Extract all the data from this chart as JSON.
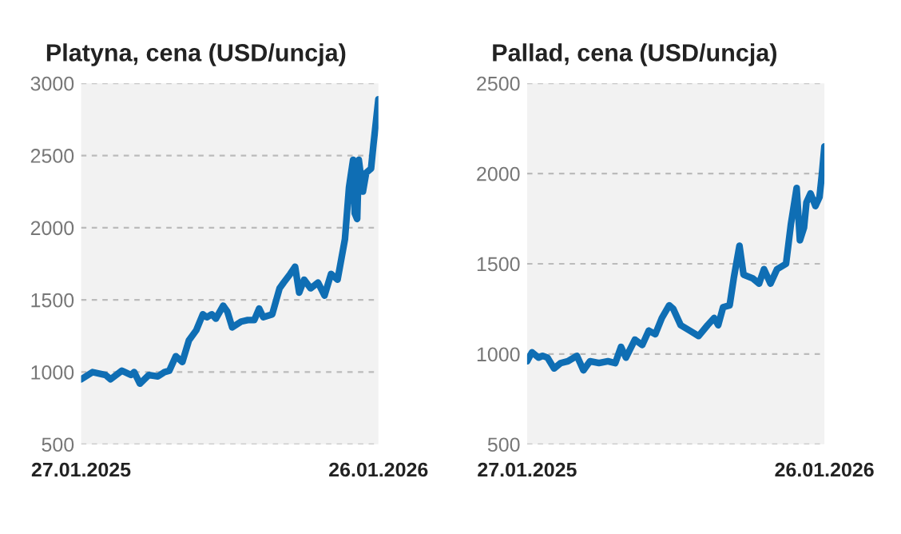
{
  "chart_data": [
    {
      "type": "line",
      "title": "Platyna, cena (USD/uncja)",
      "x": [
        "2025-01-27",
        "2025-02-10",
        "2025-02-26",
        "2025-03-04",
        "2025-03-18",
        "2025-03-29",
        "2025-04-02",
        "2025-04-09",
        "2025-04-20",
        "2025-05-01",
        "2025-05-09",
        "2025-05-15",
        "2025-05-23",
        "2025-05-31",
        "2025-06-08",
        "2025-06-17",
        "2025-06-25",
        "2025-06-30",
        "2025-07-06",
        "2025-07-11",
        "2025-07-20",
        "2025-07-25",
        "2025-07-31",
        "2025-08-11",
        "2025-08-19",
        "2025-08-27",
        "2025-09-02",
        "2025-09-07",
        "2025-09-18",
        "2025-09-27",
        "2025-10-02",
        "2025-10-10",
        "2025-10-16",
        "2025-10-21",
        "2025-10-27",
        "2025-11-04",
        "2025-11-13",
        "2025-11-21",
        "2025-11-29",
        "2025-12-07",
        "2025-12-16",
        "2025-12-21",
        "2025-12-26",
        "2025-12-28",
        "2025-12-31",
        "2026-01-02",
        "2026-01-07",
        "2026-01-11",
        "2026-01-17",
        "2026-01-20",
        "2026-01-26"
      ],
      "series": [
        {
          "color": "#0f6eb4",
          "values": [
            950,
            1000,
            980,
            950,
            1010,
            980,
            1000,
            920,
            980,
            970,
            1000,
            1010,
            1110,
            1070,
            1220,
            1290,
            1400,
            1380,
            1400,
            1370,
            1460,
            1420,
            1310,
            1350,
            1360,
            1360,
            1440,
            1380,
            1400,
            1580,
            1620,
            1680,
            1730,
            1550,
            1640,
            1580,
            1620,
            1530,
            1680,
            1640,
            1920,
            2280,
            2470,
            2100,
            2060,
            2470,
            2250,
            2380,
            2410,
            2580,
            2890
          ]
        }
      ],
      "xlim": [
        "2025-01-27",
        "2026-01-26"
      ],
      "xticks": [
        {
          "value": "2025-01-27",
          "label": "27.01.2025"
        },
        {
          "value": "2026-01-26",
          "label": "26.01.2026"
        }
      ],
      "ylim": [
        500,
        3000
      ],
      "yticks": [
        500,
        1000,
        1500,
        2000,
        2500,
        3000
      ],
      "grid": "y",
      "marker": "none",
      "line_style": "solid"
    },
    {
      "type": "line",
      "title": "Pallad, cena (USD/uncja)",
      "x": [
        "2025-01-27",
        "2025-02-02",
        "2025-02-10",
        "2025-02-15",
        "2025-02-21",
        "2025-03-01",
        "2025-03-09",
        "2025-03-18",
        "2025-03-29",
        "2025-04-06",
        "2025-04-14",
        "2025-04-25",
        "2025-05-06",
        "2025-05-15",
        "2025-05-22",
        "2025-05-28",
        "2025-06-08",
        "2025-06-17",
        "2025-06-25",
        "2025-07-03",
        "2025-07-11",
        "2025-07-20",
        "2025-07-25",
        "2025-08-03",
        "2025-08-14",
        "2025-08-25",
        "2025-09-05",
        "2025-09-13",
        "2025-09-18",
        "2025-09-24",
        "2025-10-02",
        "2025-10-07",
        "2025-10-14",
        "2025-10-19",
        "2025-10-30",
        "2025-11-07",
        "2025-11-13",
        "2025-11-21",
        "2025-11-29",
        "2025-12-10",
        "2025-12-16",
        "2025-12-23",
        "2025-12-27",
        "2026-01-01",
        "2026-01-04",
        "2026-01-09",
        "2026-01-15",
        "2026-01-20",
        "2026-01-23",
        "2026-01-26"
      ],
      "series": [
        {
          "color": "#0f6eb4",
          "values": [
            960,
            1010,
            980,
            990,
            980,
            920,
            950,
            960,
            990,
            910,
            960,
            950,
            960,
            950,
            1040,
            980,
            1080,
            1050,
            1130,
            1110,
            1200,
            1270,
            1250,
            1160,
            1130,
            1100,
            1160,
            1200,
            1160,
            1260,
            1270,
            1420,
            1600,
            1440,
            1420,
            1390,
            1470,
            1390,
            1470,
            1500,
            1720,
            1920,
            1630,
            1700,
            1840,
            1890,
            1820,
            1870,
            2000,
            2150
          ]
        }
      ],
      "xlim": [
        "2025-01-27",
        "2026-01-26"
      ],
      "xticks": [
        {
          "value": "2025-01-27",
          "label": "27.01.2025"
        },
        {
          "value": "2026-01-26",
          "label": "26.01.2026"
        }
      ],
      "ylim": [
        500,
        2500
      ],
      "yticks": [
        500,
        1000,
        1500,
        2000,
        2500
      ],
      "grid": "y",
      "marker": "none",
      "line_style": "solid"
    }
  ]
}
